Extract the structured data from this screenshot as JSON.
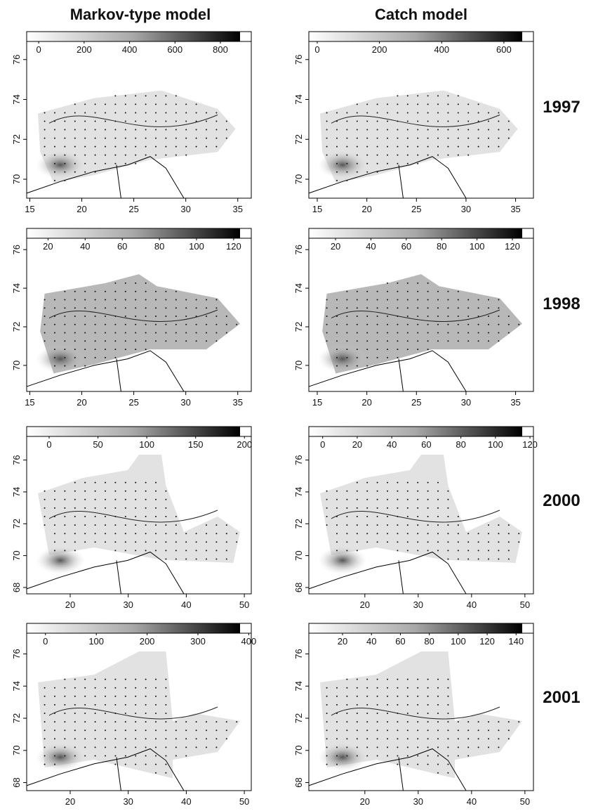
{
  "columns": [
    "Markov-type model",
    "Catch model"
  ],
  "rows": [
    {
      "year": "1997",
      "panels": [
        {
          "clim": [
            -53,
            936
          ],
          "cticks": [
            0,
            200,
            400,
            600,
            800
          ],
          "xlim": [
            14.7,
            36.3
          ],
          "xticks": [
            15,
            20,
            25,
            30,
            35
          ],
          "ylim": [
            69.05,
            77.4
          ],
          "yticks": [
            70,
            72,
            74,
            76
          ]
        },
        {
          "clim": [
            -27,
            695
          ],
          "cticks": [
            0,
            200,
            400,
            600
          ],
          "xlim": [
            14.15,
            36.8
          ],
          "xticks": [
            15,
            20,
            25,
            30,
            35
          ],
          "ylim": [
            69.05,
            77.4
          ],
          "yticks": [
            70,
            72,
            74,
            76
          ]
        }
      ]
    },
    {
      "year": "1998",
      "panels": [
        {
          "clim": [
            8.5,
            129.5
          ],
          "cticks": [
            20,
            40,
            60,
            80,
            100,
            120
          ],
          "xlim": [
            14.7,
            36.3
          ],
          "xticks": [
            15,
            20,
            25,
            30,
            35
          ],
          "ylim": [
            68.65,
            77.1
          ],
          "yticks": [
            70,
            72,
            74,
            76
          ]
        },
        {
          "clim": [
            4.9,
            131.9
          ],
          "cticks": [
            20,
            40,
            60,
            80,
            100,
            120
          ],
          "xlim": [
            14.15,
            36.8
          ],
          "xticks": [
            15,
            20,
            25,
            30,
            35
          ],
          "ylim": [
            68.65,
            77.1
          ],
          "yticks": [
            70,
            72,
            74,
            76
          ]
        }
      ]
    },
    {
      "year": "2000",
      "panels": [
        {
          "clim": [
            -23,
            207
          ],
          "cticks": [
            0,
            50,
            100,
            150,
            200
          ],
          "xlim": [
            12.5,
            51.2
          ],
          "xticks": [
            20,
            30,
            40,
            50
          ],
          "ylim": [
            67.6,
            78.1
          ],
          "yticks": [
            68,
            70,
            72,
            74,
            76
          ]
        },
        {
          "clim": [
            -8,
            122
          ],
          "cticks": [
            0,
            20,
            40,
            60,
            80,
            100,
            120
          ],
          "xlim": [
            9.5,
            51.6
          ],
          "xticks": [
            20,
            30,
            40,
            50
          ],
          "ylim": [
            67.6,
            78.1
          ],
          "yticks": [
            68,
            70,
            72,
            74,
            76
          ]
        }
      ]
    },
    {
      "year": "2001",
      "panels": [
        {
          "clim": [
            -37,
            405
          ],
          "cticks": [
            0,
            100,
            200,
            300,
            400
          ],
          "xlim": [
            12.5,
            51.2
          ],
          "xticks": [
            20,
            30,
            40,
            50
          ],
          "ylim": [
            67.5,
            77.9
          ],
          "yticks": [
            68,
            70,
            72,
            74,
            76
          ]
        },
        {
          "clim": [
            -3.3,
            152
          ],
          "cticks": [
            20,
            40,
            60,
            80,
            100,
            120,
            140
          ],
          "xlim": [
            9.5,
            51.6
          ],
          "xticks": [
            20,
            30,
            40,
            50
          ],
          "ylim": [
            67.5,
            77.9
          ],
          "yticks": [
            68,
            70,
            72,
            74,
            76
          ]
        }
      ]
    }
  ]
}
